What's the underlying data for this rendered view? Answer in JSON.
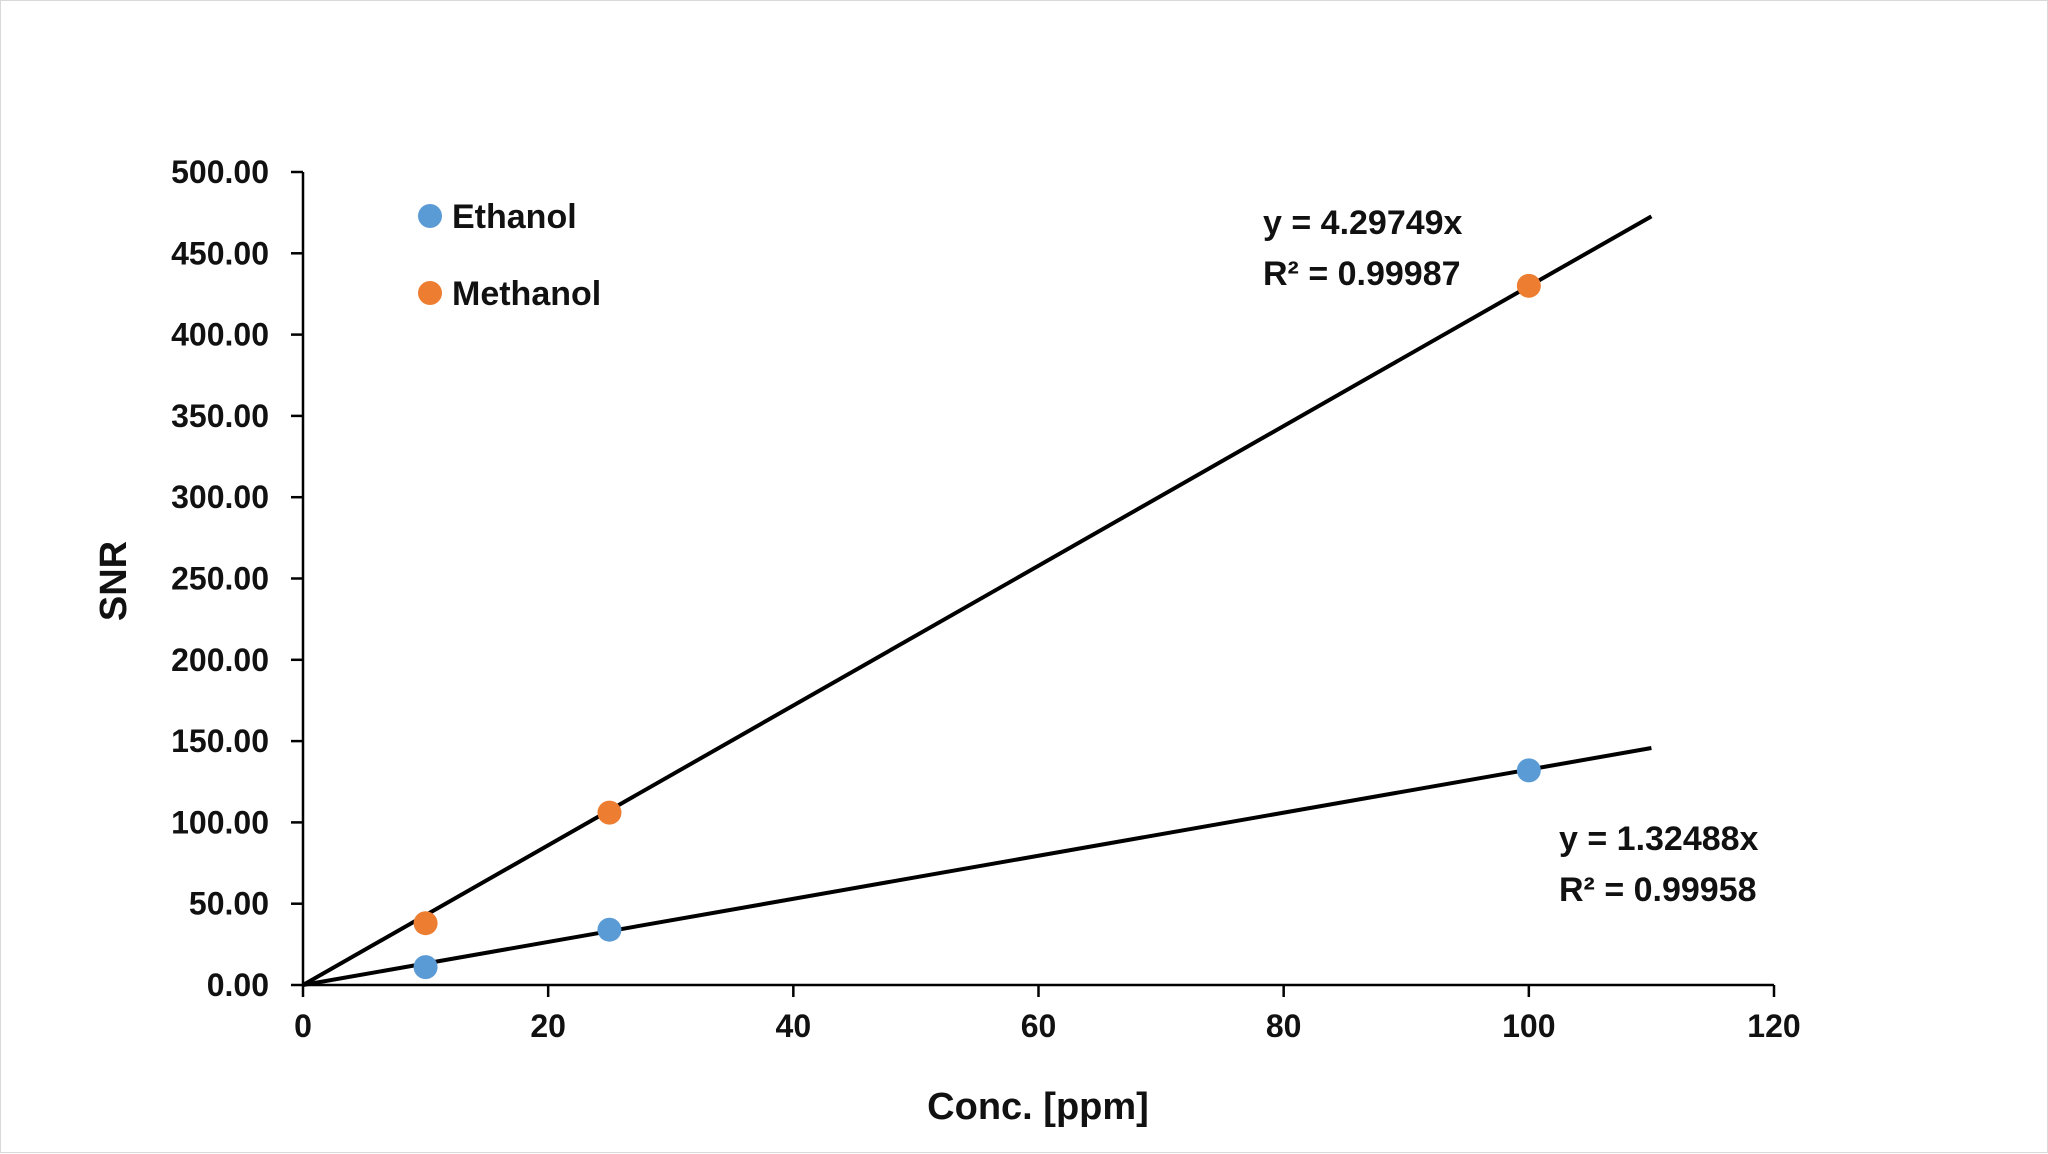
{
  "chart_data": {
    "type": "scatter",
    "xlabel": "Conc. [ppm]",
    "ylabel": "SNR",
    "xlim": [
      0,
      120
    ],
    "ylim": [
      0,
      500
    ],
    "x_ticks": [
      "0",
      "20",
      "40",
      "60",
      "80",
      "100",
      "120"
    ],
    "y_ticks": [
      "0.00",
      "50.00",
      "100.00",
      "150.00",
      "200.00",
      "250.00",
      "300.00",
      "350.00",
      "400.00",
      "450.00",
      "500.00"
    ],
    "grid": false,
    "legend_position": "top-left",
    "series": [
      {
        "name": "Ethanol",
        "color": "#5B9BD5",
        "points": [
          [
            10,
            11
          ],
          [
            25,
            34
          ],
          [
            100,
            132
          ]
        ],
        "trendline": {
          "slope": 1.32488,
          "x_end": 110,
          "color": "#000000"
        }
      },
      {
        "name": "Methanol",
        "color": "#ED7D31",
        "points": [
          [
            10,
            38
          ],
          [
            25,
            106
          ],
          [
            100,
            430
          ]
        ],
        "trendline": {
          "slope": 4.29749,
          "x_end": 110,
          "color": "#000000"
        }
      }
    ],
    "annotations": [
      {
        "series": "Methanol",
        "equation": "y = 4.29749x",
        "r2": "R² = 0.99987"
      },
      {
        "series": "Ethanol",
        "equation": "y = 1.32488x",
        "r2": "R² = 0.99958"
      }
    ]
  }
}
